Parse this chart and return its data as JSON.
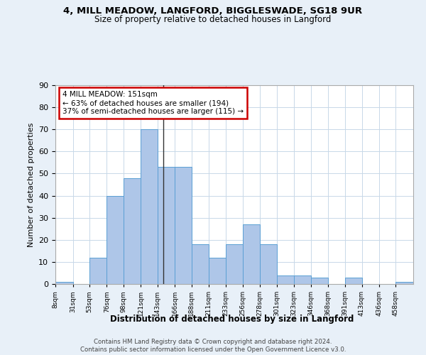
{
  "title1": "4, MILL MEADOW, LANGFORD, BIGGLESWADE, SG18 9UR",
  "title2": "Size of property relative to detached houses in Langford",
  "xlabel": "Distribution of detached houses by size in Langford",
  "ylabel": "Number of detached properties",
  "bar_values": [
    1,
    0,
    12,
    40,
    48,
    70,
    53,
    53,
    18,
    12,
    18,
    27,
    18,
    4,
    4,
    3,
    0,
    3,
    0,
    0,
    1
  ],
  "bin_labels": [
    "8sqm",
    "31sqm",
    "53sqm",
    "76sqm",
    "98sqm",
    "121sqm",
    "143sqm",
    "166sqm",
    "188sqm",
    "211sqm",
    "233sqm",
    "256sqm",
    "278sqm",
    "301sqm",
    "323sqm",
    "346sqm",
    "368sqm",
    "391sqm",
    "413sqm",
    "436sqm",
    "458sqm"
  ],
  "bar_color": "#aec6e8",
  "bar_edge_color": "#5a9fd4",
  "annotation_box_text": "4 MILL MEADOW: 151sqm\n← 63% of detached houses are smaller (194)\n37% of semi-detached houses are larger (115) →",
  "annotation_box_color": "#ffffff",
  "annotation_box_edge_color": "#cc0000",
  "vline_x": 151,
  "background_color": "#e8f0f8",
  "plot_bg_color": "#ffffff",
  "footer_text": "Contains HM Land Registry data © Crown copyright and database right 2024.\nContains public sector information licensed under the Open Government Licence v3.0.",
  "ylim": [
    0,
    90
  ],
  "yticks": [
    0,
    10,
    20,
    30,
    40,
    50,
    60,
    70,
    80,
    90
  ],
  "bin_edges": [
    8,
    31,
    53,
    76,
    98,
    121,
    143,
    166,
    188,
    211,
    233,
    256,
    278,
    301,
    323,
    346,
    368,
    391,
    413,
    436,
    458,
    481
  ]
}
